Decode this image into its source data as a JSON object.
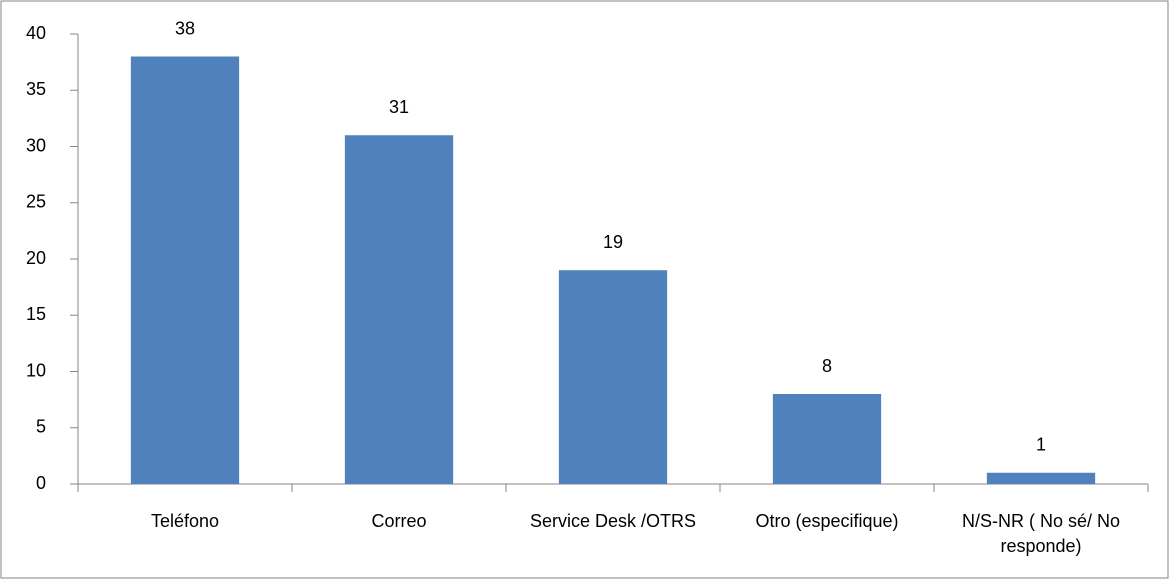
{
  "chart_data": {
    "type": "bar",
    "categories": [
      "Teléfono",
      "Correo",
      "Service Desk /OTRS",
      "Otro (especifique)",
      "N/S-NR ( No sé/ No responde)"
    ],
    "values": [
      38,
      31,
      19,
      8,
      1
    ],
    "color": "#4f81bd",
    "ylim": [
      0,
      40
    ],
    "yticks": [
      0,
      5,
      10,
      15,
      20,
      25,
      30,
      35,
      40
    ],
    "grid": false,
    "data_labels": true
  }
}
